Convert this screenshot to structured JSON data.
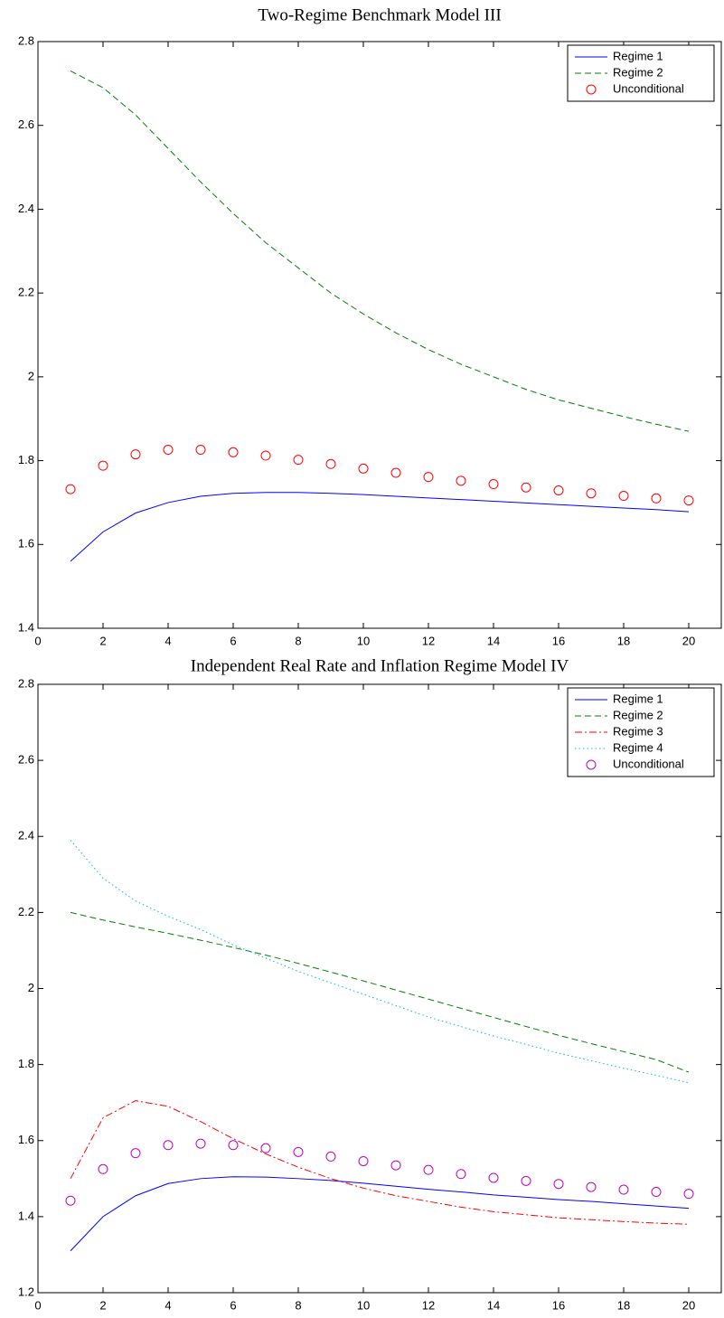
{
  "chart_data": [
    {
      "type": "line",
      "title": "Two-Regime Benchmark Model III",
      "x": [
        1,
        2,
        3,
        4,
        5,
        6,
        7,
        8,
        9,
        10,
        11,
        12,
        13,
        14,
        15,
        16,
        17,
        18,
        19,
        20
      ],
      "xlim": [
        0,
        21
      ],
      "xticks": [
        0,
        2,
        4,
        6,
        8,
        10,
        12,
        14,
        16,
        18,
        20
      ],
      "ylim": [
        1.4,
        2.8
      ],
      "yticks": [
        1.4,
        1.6,
        1.8,
        2,
        2.2,
        2.4,
        2.6,
        2.8
      ],
      "legend": "upper right",
      "series": [
        {
          "name": "Regime 1",
          "color": "#0000ff",
          "style": "solid",
          "values": [
            1.56,
            1.63,
            1.675,
            1.7,
            1.715,
            1.722,
            1.724,
            1.724,
            1.722,
            1.719,
            1.715,
            1.711,
            1.707,
            1.703,
            1.699,
            1.695,
            1.691,
            1.687,
            1.683,
            1.678
          ]
        },
        {
          "name": "Regime 2",
          "color": "#008000",
          "style": "dashed",
          "values": [
            2.73,
            2.69,
            2.625,
            2.545,
            2.465,
            2.39,
            2.32,
            2.26,
            2.2,
            2.15,
            2.105,
            2.065,
            2.03,
            2.0,
            1.97,
            1.945,
            1.925,
            1.905,
            1.887,
            1.87
          ]
        },
        {
          "name": "Unconditional",
          "color": "#ff0000",
          "style": "markers",
          "values": [
            1.732,
            1.788,
            1.815,
            1.826,
            1.826,
            1.82,
            1.812,
            1.802,
            1.792,
            1.781,
            1.771,
            1.761,
            1.752,
            1.744,
            1.736,
            1.729,
            1.722,
            1.716,
            1.71,
            1.705
          ]
        }
      ]
    },
    {
      "type": "line",
      "title": "Independent Real Rate and Inflation Regime Model IV",
      "x": [
        1,
        2,
        3,
        4,
        5,
        6,
        7,
        8,
        9,
        10,
        11,
        12,
        13,
        14,
        15,
        16,
        17,
        18,
        19,
        20
      ],
      "xlim": [
        0,
        21
      ],
      "xticks": [
        0,
        2,
        4,
        6,
        8,
        10,
        12,
        14,
        16,
        18,
        20
      ],
      "ylim": [
        1.2,
        2.8
      ],
      "yticks": [
        1.2,
        1.4,
        1.6,
        1.8,
        2,
        2.2,
        2.4,
        2.6,
        2.8
      ],
      "legend": "upper right",
      "series": [
        {
          "name": "Regime 1",
          "color": "#0000ff",
          "style": "solid",
          "values": [
            1.31,
            1.4,
            1.455,
            1.487,
            1.5,
            1.505,
            1.504,
            1.5,
            1.495,
            1.488,
            1.48,
            1.472,
            1.465,
            1.457,
            1.451,
            1.445,
            1.44,
            1.434,
            1.428,
            1.422
          ]
        },
        {
          "name": "Regime 2",
          "color": "#008000",
          "style": "dashed",
          "values": [
            2.2,
            2.18,
            2.162,
            2.145,
            2.127,
            2.108,
            2.088,
            2.066,
            2.043,
            2.02,
            1.996,
            1.972,
            1.948,
            1.924,
            1.9,
            1.877,
            1.855,
            1.834,
            1.813,
            1.78
          ]
        },
        {
          "name": "Regime 3",
          "color": "#ff0000",
          "style": "dashdot",
          "values": [
            1.5,
            1.66,
            1.705,
            1.69,
            1.65,
            1.605,
            1.565,
            1.53,
            1.5,
            1.475,
            1.455,
            1.44,
            1.425,
            1.413,
            1.405,
            1.397,
            1.392,
            1.387,
            1.383,
            1.38
          ]
        },
        {
          "name": "Regime 4",
          "color": "#00bfbf",
          "style": "dotted",
          "values": [
            2.39,
            2.29,
            2.23,
            2.19,
            2.155,
            2.115,
            2.08,
            2.045,
            2.015,
            1.985,
            1.955,
            1.925,
            1.9,
            1.875,
            1.853,
            1.83,
            1.81,
            1.79,
            1.772,
            1.752
          ]
        },
        {
          "name": "Unconditional",
          "color": "#bf00bf",
          "style": "markers",
          "values": [
            1.442,
            1.525,
            1.567,
            1.588,
            1.592,
            1.588,
            1.58,
            1.57,
            1.558,
            1.546,
            1.535,
            1.523,
            1.512,
            1.502,
            1.494,
            1.486,
            1.478,
            1.471,
            1.465,
            1.46
          ]
        }
      ]
    }
  ]
}
